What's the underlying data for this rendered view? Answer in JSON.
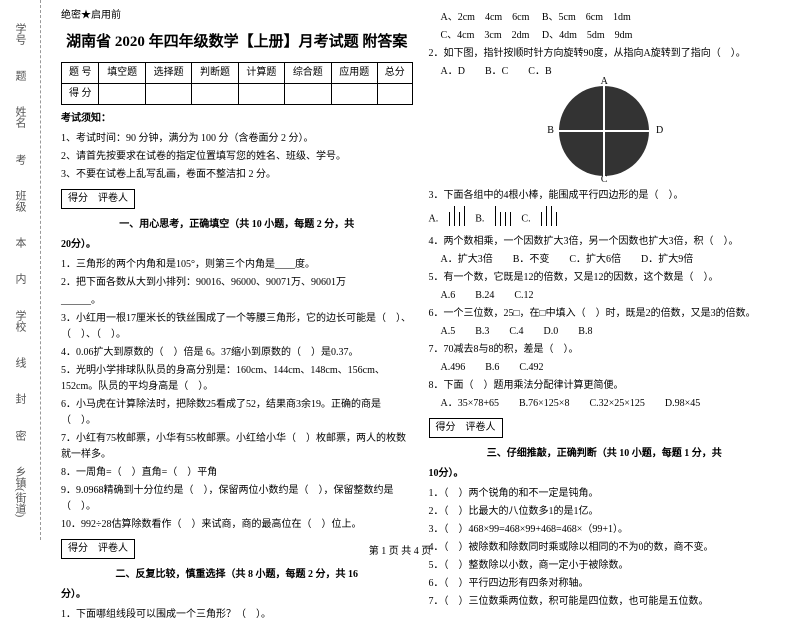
{
  "binding": {
    "labels": [
      "学号",
      "姓名",
      "班级",
      "学校",
      "乡镇(街道)"
    ],
    "marks": [
      "题",
      "考",
      "本",
      "内",
      "线",
      "封",
      "密"
    ]
  },
  "secret": "绝密★启用前",
  "title": "湖南省 2020 年四年级数学【上册】月考试题 附答案",
  "scoreTable": {
    "head": [
      "题 号",
      "填空题",
      "选择题",
      "判断题",
      "计算题",
      "综合题",
      "应用题",
      "总分"
    ],
    "row": [
      "得 分",
      "",
      "",
      "",
      "",
      "",
      "",
      ""
    ]
  },
  "noticeH": "考试须知：",
  "notices": [
    "1、考试时间：90 分钟，满分为 100 分（含卷面分 2 分）。",
    "2、请首先按要求在试卷的指定位置填写您的姓名、班级、学号。",
    "3、不要在试卷上乱写乱画，卷面不整洁扣 2 分。"
  ],
  "scorebar": "得分　评卷人",
  "sec1": {
    "title": "一、用心思考，正确填空（共 10 小题，每题 2 分，共",
    "pts": "20分）。"
  },
  "q1": [
    "1．三角形的两个内角和是105°，则第三个内角是____度。",
    "2．把下面各数从大到小排列：90016、96000、90071万、90601万",
    "______。",
    "3．小红用一根17厘米长的铁丝围成了一个等腰三角形，它的边长可能是（　）、（　）、（　）。",
    "4．0.06扩大到原数的（　）倍是 6。37缩小到原数的（　）是0.37。",
    "5．光明小学排球队队员的身高分别是：160cm、144cm、148cm、156cm、152cm。队员的平均身高是（　）。",
    "6．小马虎在计算除法时，把除数25看成了52，结果商3余19。正确的商是（　）。",
    "7．小红有75枚邮票，小华有55枚邮票。小红给小华（　）枚邮票，两人的枚数就一样多。",
    "8．一周角=（　）直角=（　）平角",
    "9．9.0968精确到十分位约是（　），保留两位小数约是（　），保留整数约是（　）。",
    "",
    "10．992÷28估算除数看作（　）来试商，商的最高位在（　）位上。"
  ],
  "sec2": {
    "title": "二、反复比较，慎重选择（共 8 小题，每题 2 分，共 16",
    "pts": "分）。"
  },
  "q2_1": "1．下面哪组线段可以围成一个三角形？（　）。",
  "q2_opts": [
    "A、2cm　4cm　6cm",
    "B、5cm　6cm　1dm",
    "C、4cm　3cm　2dm",
    "D、4dm　5dm　9dm"
  ],
  "q2_2": "2．如下图，指针按顺时针方向旋转90度，从指向A旋转到了指向（　）。",
  "q2_2opts": "A．D　　B．C　　C．B",
  "circle": {
    "A": "A",
    "B": "B",
    "C": "C",
    "D": "D"
  },
  "q2_3": "3．下面各组中的4根小棒，能围成平行四边形的是（　）。",
  "stickOpts": [
    "A.",
    "B.",
    "C."
  ],
  "q2_4": "4．两个数相乘，一个因数扩大3倍，另一个因数也扩大3倍，积（　）。",
  "q2_4opts": "A．扩大3倍　　B．不变　　C．扩大6倍　　D．扩大9倍",
  "q2_5": "5．有一个数，它既是12的倍数，又是12的因数，这个数是（　）。",
  "q2_5opts": "A.6　　B.24　　C.12",
  "q2_6": "6．一个三位数，25□，在□中填入（　）时，既是2的倍数，又是3的倍数。",
  "q2_6opts": "A.5　　B.3　　C.4　　D.0　　B.8",
  "q2_7": "7．70减去8与8的积，差是（　）。",
  "q2_7opts": "A.496　　B.6　　C.492",
  "q2_8": "8．下面（　）题用乘法分配律计算更简便。",
  "q2_8opts": "A．35×78+65　　B.76×125×8　　C.32×25×125　　D.98×45",
  "sec3": {
    "title": "三、仔细推敲，正确判断（共 10 小题，每题 1 分，共",
    "pts": "10分）。"
  },
  "q3": [
    "1．（　）两个锐角的和不一定是钝角。",
    "2．（　）比最大的八位数多1的是1亿。",
    "3．（　）468×99=468×99+468=468×（99+1）。",
    "4．（　）被除数和除数同时乘或除以相同的不为0的数，商不变。",
    "5．（　）整数除以小数，商一定小于被除数。",
    "6．（　）平行四边形有四条对称轴。",
    "7．（　）三位数乘两位数，积可能是四位数，也可能是五位数。"
  ],
  "footer": "第 1 页 共 4 页"
}
